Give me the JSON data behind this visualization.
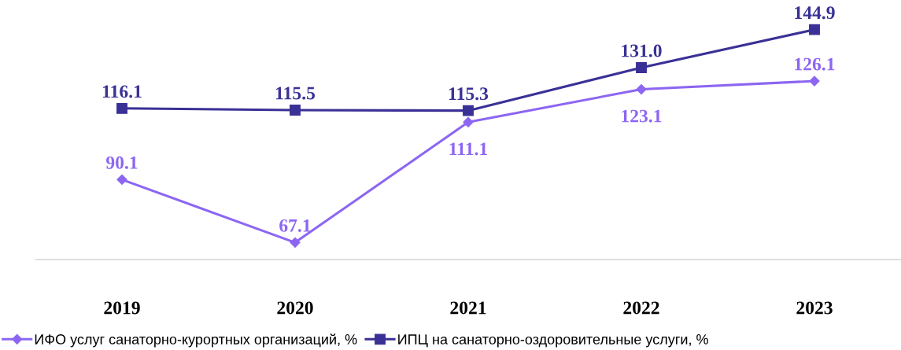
{
  "chart_data": {
    "type": "line",
    "categories": [
      "2019",
      "2020",
      "2021",
      "2022",
      "2023"
    ],
    "legend": "bottom",
    "grid": false,
    "tick_labels": "x",
    "series": [
      {
        "name": "ИФО услуг санаторно-курортных организаций, %",
        "color": "#8c66f2",
        "marker": "diamond",
        "values": [
          90.1,
          67.1,
          111.1,
          123.1,
          126.1
        ],
        "value_labels": [
          "90.1",
          "67.1",
          "111.1",
          "123.1",
          "126.1"
        ]
      },
      {
        "name": "ИПЦ на санаторно-оздоровительные услуги, %",
        "color": "#3a3196",
        "marker": "square",
        "values": [
          116.1,
          115.5,
          115.3,
          131.0,
          144.9
        ],
        "value_labels": [
          "116.1",
          "115.5",
          "115.3",
          "131.0",
          "144.9"
        ]
      }
    ]
  }
}
